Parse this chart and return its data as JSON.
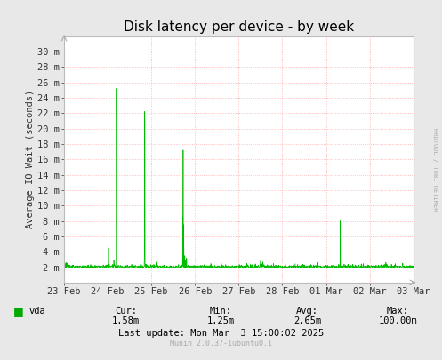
{
  "title": "Disk latency per device - by week",
  "ylabel": "Average IO Wait (seconds)",
  "background_color": "#e8e8e8",
  "plot_bg_color": "#ffffff",
  "grid_color": "#ffaaaa",
  "line_color": "#00bb00",
  "ytick_labels": [
    "2 m",
    "4 m",
    "6 m",
    "8 m",
    "10 m",
    "12 m",
    "14 m",
    "16 m",
    "18 m",
    "20 m",
    "22 m",
    "24 m",
    "26 m",
    "28 m",
    "30 m"
  ],
  "ytick_values": [
    2,
    4,
    6,
    8,
    10,
    12,
    14,
    16,
    18,
    20,
    22,
    24,
    26,
    28,
    30
  ],
  "ymin": 0,
  "ymax": 32,
  "xtick_labels": [
    "23 Feb",
    "24 Feb",
    "25 Feb",
    "26 Feb",
    "27 Feb",
    "28 Feb",
    "01 Mar",
    "02 Mar",
    "03 Mar"
  ],
  "legend_label": "vda",
  "legend_color": "#00aa00",
  "title_fontsize": 11,
  "label_fontsize": 7.5,
  "tick_fontsize": 7.5
}
